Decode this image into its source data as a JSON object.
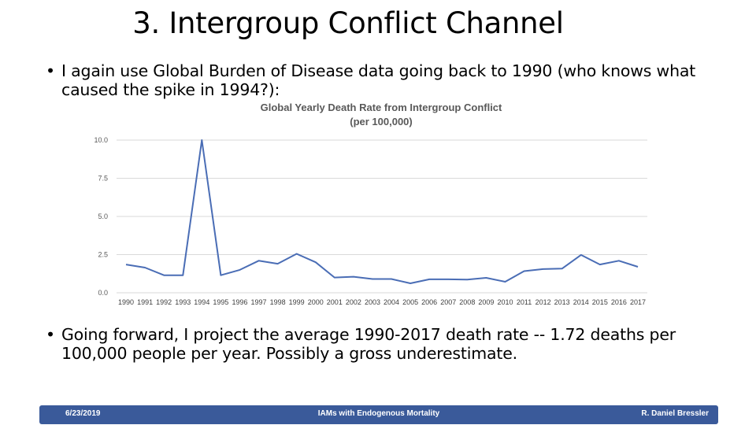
{
  "slide": {
    "title": "3. Intergroup Conflict Channel",
    "bullet_char": "•",
    "bullets": [
      "I again use Global Burden of Disease data going back to 1990 (who knows what caused the spike in 1994?):",
      "Going forward, I project the average 1990-2017 death rate -- 1.72 deaths per 100,000 people per year. Possibly a gross underestimate."
    ]
  },
  "footer": {
    "date": "6/23/2019",
    "center": "IAMs with Endogenous Mortality",
    "author": "R. Daniel Bressler",
    "background": "#3a5a9a"
  },
  "chart_data": {
    "type": "line",
    "title": "Global Yearly Death Rate from Intergroup Conflict",
    "subtitle": "(per 100,000)",
    "xlabel": "",
    "ylabel": "",
    "ylim": [
      0,
      10
    ],
    "yticks": [
      "0.0",
      "2.5",
      "5.0",
      "7.5",
      "10.0"
    ],
    "grid": true,
    "line_color": "#4a6db5",
    "x": [
      1990,
      1991,
      1992,
      1993,
      1994,
      1995,
      1996,
      1997,
      1998,
      1999,
      2000,
      2001,
      2002,
      2003,
      2004,
      2005,
      2006,
      2007,
      2008,
      2009,
      2010,
      2011,
      2012,
      2013,
      2014,
      2015,
      2016,
      2017
    ],
    "series": [
      {
        "values": [
          1.85,
          1.65,
          1.15,
          1.15,
          10.0,
          1.15,
          1.5,
          2.1,
          1.9,
          2.55,
          2.0,
          1.0,
          1.05,
          0.9,
          0.9,
          0.62,
          0.88,
          0.88,
          0.86,
          0.98,
          0.72,
          1.42,
          1.55,
          1.58,
          2.48,
          1.85,
          2.1,
          1.7
        ]
      }
    ]
  }
}
